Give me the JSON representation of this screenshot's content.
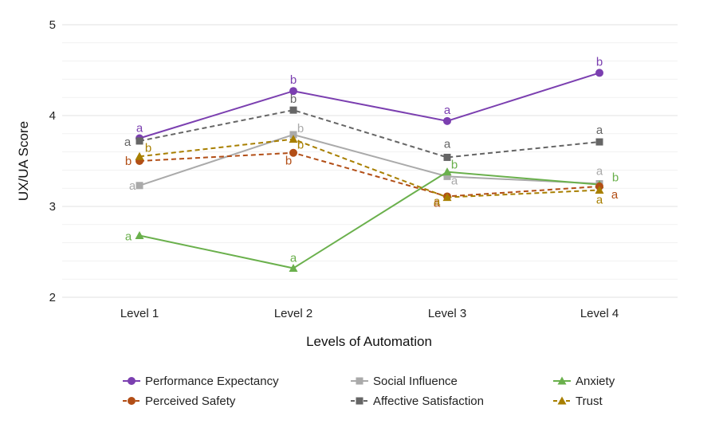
{
  "chart_data": {
    "type": "line",
    "xlabel": "Levels of Automation",
    "ylabel": "UX/UA Score",
    "categories": [
      "Level 1",
      "Level 2",
      "Level 3",
      "Level 4"
    ],
    "ylim": [
      2,
      5
    ],
    "yticks": [
      2,
      3,
      4,
      5
    ],
    "grid": true,
    "legend_position": "bottom",
    "series": [
      {
        "name": "Performance Expectancy",
        "color": "#7b3fb0",
        "dashed": false,
        "marker": "circle",
        "values": [
          3.75,
          4.27,
          3.94,
          4.47
        ],
        "letters": [
          "a",
          "b",
          "a",
          "b"
        ]
      },
      {
        "name": "Social Influence",
        "color": "#aaaaaa",
        "dashed": false,
        "marker": "square",
        "values": [
          3.23,
          3.79,
          3.33,
          3.25
        ],
        "letters": [
          "a",
          "b",
          "a",
          "a"
        ]
      },
      {
        "name": "Anxiety",
        "color": "#6ab04c",
        "dashed": false,
        "marker": "triangle",
        "values": [
          2.68,
          2.32,
          3.38,
          3.24
        ],
        "letters": [
          "a",
          "a",
          "b",
          "b"
        ]
      },
      {
        "name": "Perceived Safety",
        "color": "#b24e16",
        "dashed": true,
        "marker": "circle",
        "values": [
          3.5,
          3.59,
          3.11,
          3.22
        ],
        "letters": [
          "b",
          "b",
          "a",
          "a"
        ]
      },
      {
        "name": "Affective Satisfaction",
        "color": "#666666",
        "dashed": true,
        "marker": "square",
        "values": [
          3.72,
          4.06,
          3.54,
          3.71
        ],
        "letters": [
          "a",
          "b",
          "a",
          "a"
        ]
      },
      {
        "name": "Trust",
        "color": "#a87f00",
        "dashed": true,
        "marker": "triangle",
        "values": [
          3.55,
          3.74,
          3.1,
          3.18
        ],
        "letters": [
          "b",
          "b",
          "a",
          "a"
        ]
      }
    ]
  }
}
